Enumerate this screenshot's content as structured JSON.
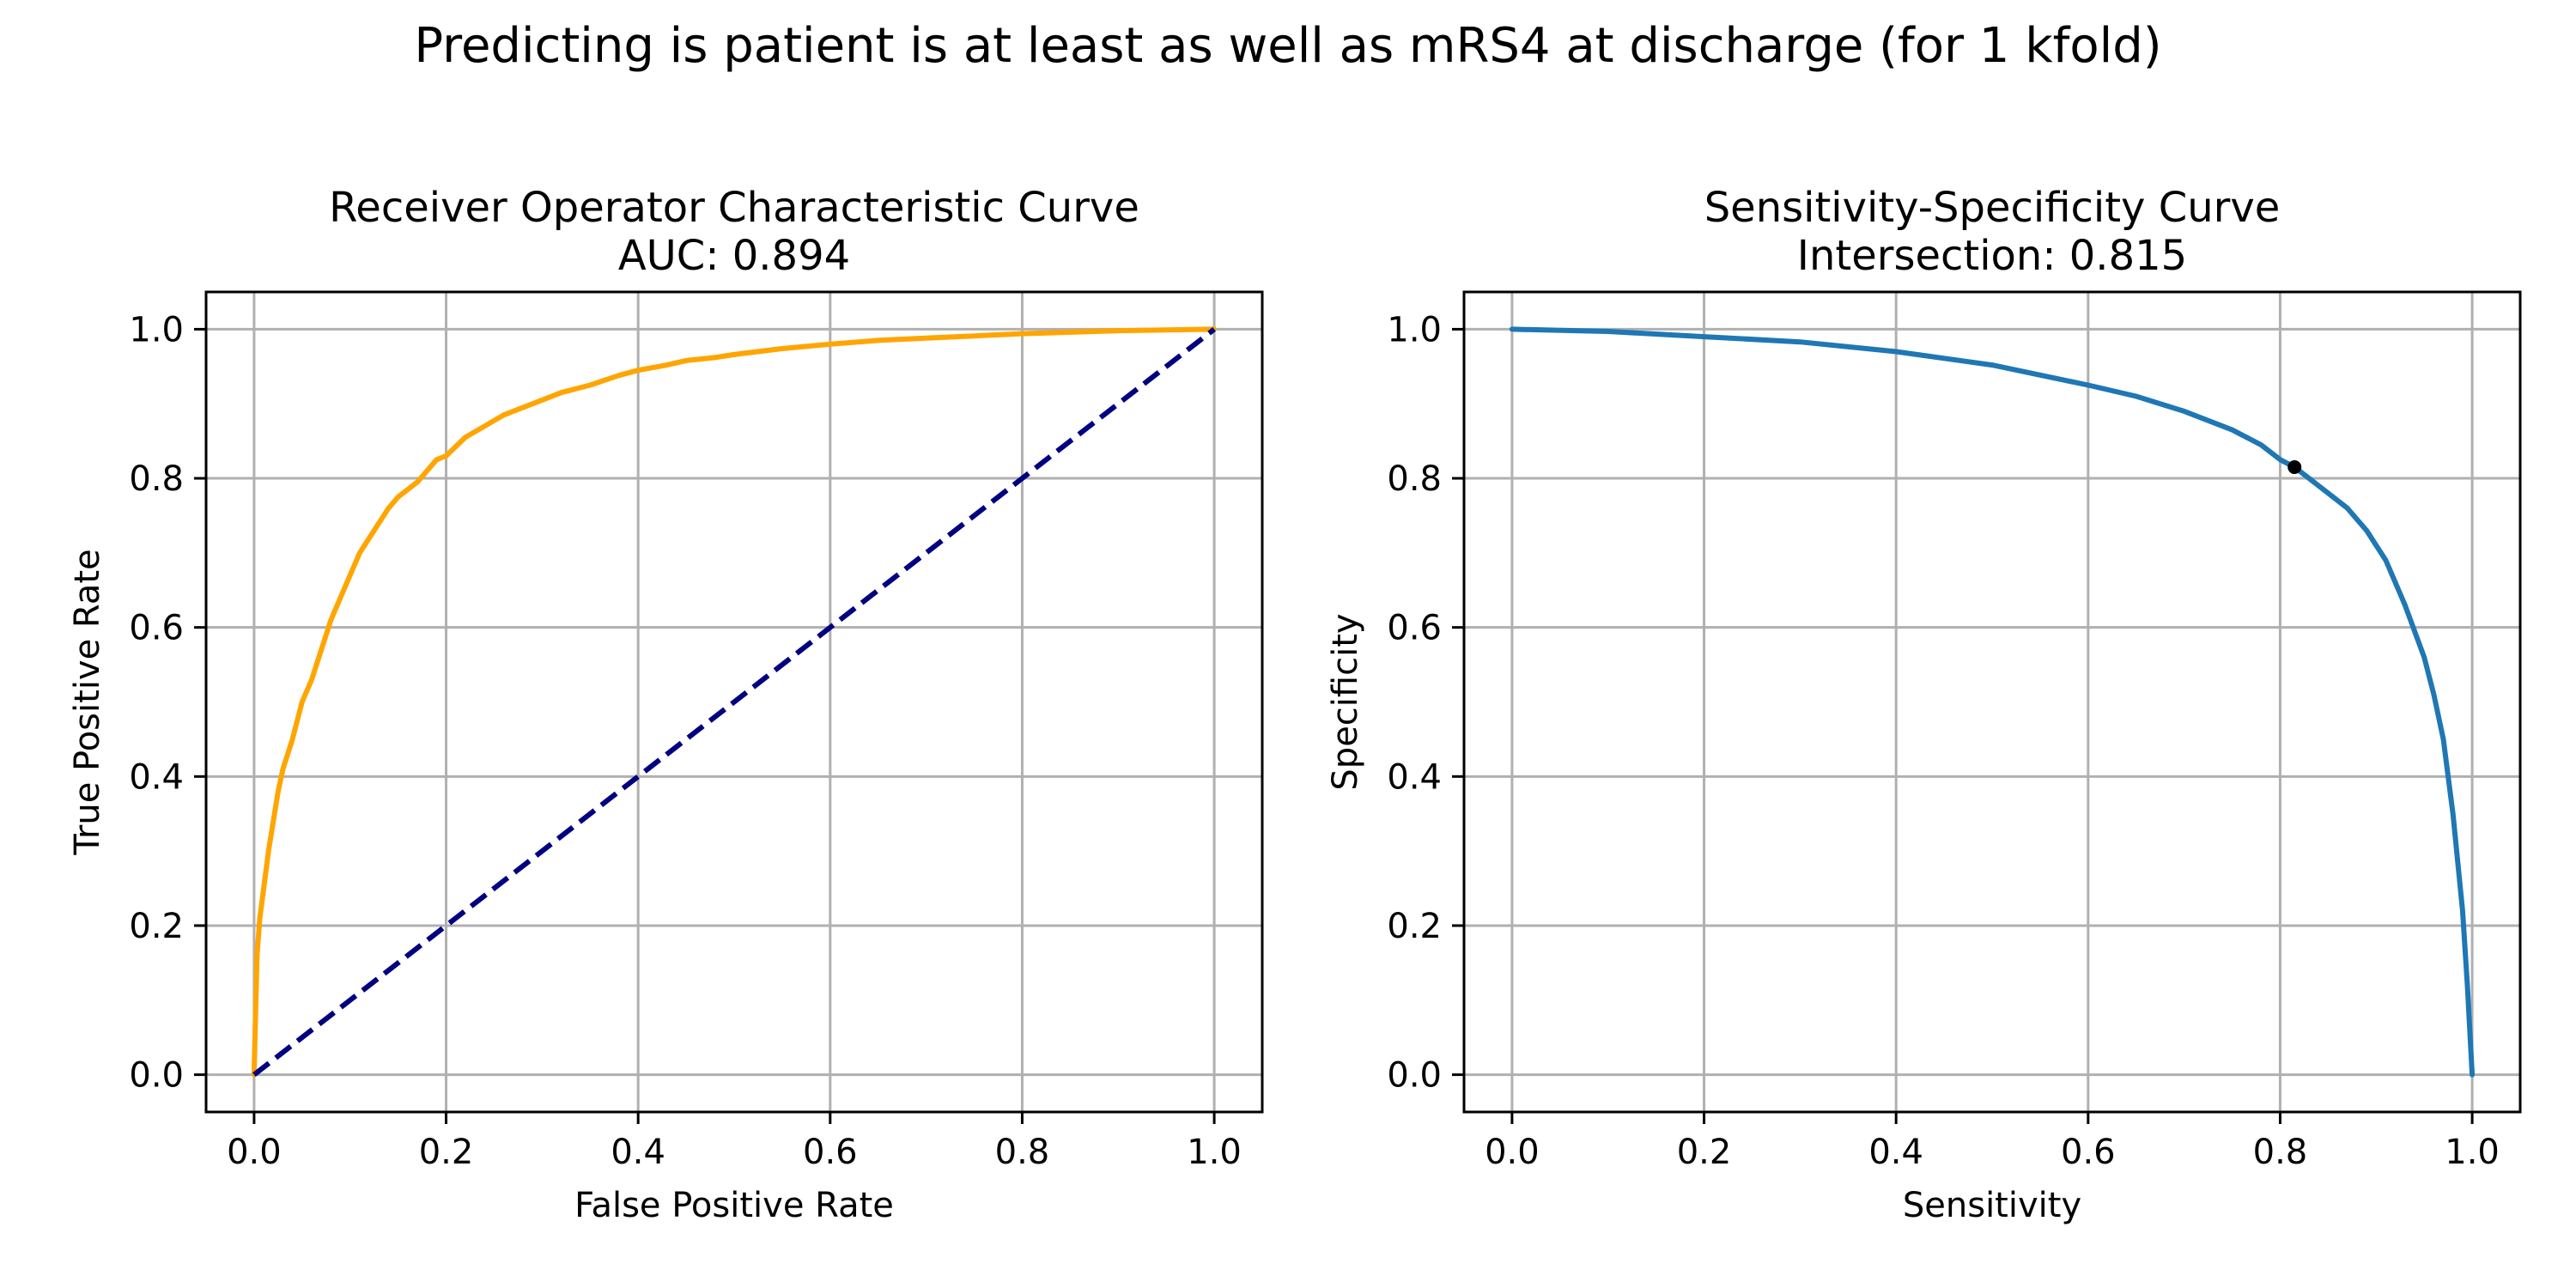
{
  "suptitle": "Predicting is patient is at least as well as mRS4 at discharge (for 1 kfold)",
  "chart_data": [
    {
      "type": "line",
      "title": "Receiver Operator Characteristic Curve",
      "subtitle": "AUC: 0.894",
      "xlabel": "False Positive Rate",
      "ylabel": "True Positive Rate",
      "xlim": [
        -0.05,
        1.05
      ],
      "ylim": [
        -0.05,
        1.05
      ],
      "xticks": [
        "0.0",
        "0.2",
        "0.4",
        "0.6",
        "0.8",
        "1.0"
      ],
      "yticks": [
        "0.0",
        "0.2",
        "0.4",
        "0.6",
        "0.8",
        "1.0"
      ],
      "grid": true,
      "series": [
        {
          "color": "#ffa500",
          "style": "solid",
          "x": [
            0.0,
            0.003,
            0.006,
            0.01,
            0.015,
            0.02,
            0.025,
            0.03,
            0.04,
            0.05,
            0.06,
            0.07,
            0.08,
            0.09,
            0.1,
            0.11,
            0.12,
            0.13,
            0.14,
            0.15,
            0.16,
            0.17,
            0.18,
            0.19,
            0.2,
            0.22,
            0.24,
            0.26,
            0.28,
            0.3,
            0.32,
            0.35,
            0.38,
            0.4,
            0.43,
            0.45,
            0.48,
            0.5,
            0.55,
            0.6,
            0.65,
            0.7,
            0.75,
            0.8,
            0.85,
            0.9,
            0.95,
            1.0
          ],
          "y": [
            0.0,
            0.16,
            0.21,
            0.25,
            0.3,
            0.34,
            0.38,
            0.41,
            0.45,
            0.5,
            0.53,
            0.57,
            0.61,
            0.64,
            0.67,
            0.7,
            0.72,
            0.74,
            0.76,
            0.775,
            0.785,
            0.795,
            0.81,
            0.825,
            0.83,
            0.855,
            0.87,
            0.885,
            0.895,
            0.905,
            0.915,
            0.925,
            0.938,
            0.945,
            0.952,
            0.958,
            0.962,
            0.966,
            0.974,
            0.98,
            0.985,
            0.988,
            0.991,
            0.994,
            0.996,
            0.998,
            0.999,
            1.0
          ]
        },
        {
          "color": "#000080",
          "style": "dashed",
          "x": [
            0.0,
            1.0
          ],
          "y": [
            0.0,
            1.0
          ]
        }
      ]
    },
    {
      "type": "line",
      "title": "Sensitivity-Specificity Curve",
      "subtitle": "Intersection: 0.815",
      "xlabel": "Sensitivity",
      "ylabel": "Specificity",
      "xlim": [
        -0.05,
        1.05
      ],
      "ylim": [
        -0.05,
        1.05
      ],
      "xticks": [
        "0.0",
        "0.2",
        "0.4",
        "0.6",
        "0.8",
        "1.0"
      ],
      "yticks": [
        "0.0",
        "0.2",
        "0.4",
        "0.6",
        "0.8",
        "1.0"
      ],
      "grid": true,
      "series": [
        {
          "color": "#1f77b4",
          "style": "solid",
          "x": [
            0.0,
            0.1,
            0.2,
            0.3,
            0.4,
            0.5,
            0.6,
            0.65,
            0.7,
            0.75,
            0.78,
            0.8,
            0.815,
            0.83,
            0.85,
            0.87,
            0.89,
            0.91,
            0.93,
            0.95,
            0.96,
            0.97,
            0.98,
            0.99,
            0.995,
            1.0
          ],
          "y": [
            1.0,
            0.997,
            0.99,
            0.983,
            0.97,
            0.952,
            0.925,
            0.91,
            0.89,
            0.865,
            0.845,
            0.825,
            0.815,
            0.8,
            0.78,
            0.76,
            0.73,
            0.69,
            0.63,
            0.56,
            0.51,
            0.45,
            0.35,
            0.22,
            0.12,
            0.0
          ]
        }
      ],
      "markers": [
        {
          "x": 0.815,
          "y": 0.815,
          "color": "#000000"
        }
      ]
    }
  ]
}
